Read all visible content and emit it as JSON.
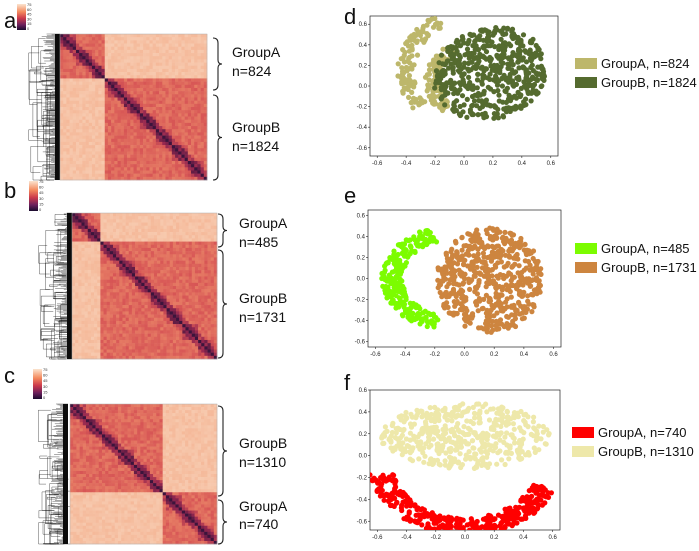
{
  "panels": {
    "a": {
      "label": "a",
      "groups": [
        {
          "name": "GroupA",
          "n": "n=824"
        },
        {
          "name": "GroupB",
          "n": "n=1824"
        }
      ]
    },
    "b": {
      "label": "b",
      "groups": [
        {
          "name": "GroupA",
          "n": "n=485"
        },
        {
          "name": "GroupB",
          "n": "n=1731"
        }
      ]
    },
    "c": {
      "label": "c",
      "groups": [
        {
          "name": "GroupB",
          "n": "n=1310"
        },
        {
          "name": "GroupA",
          "n": "n=740"
        }
      ]
    },
    "d": {
      "label": "d"
    },
    "e": {
      "label": "e"
    },
    "f": {
      "label": "f"
    }
  },
  "colorbar_ticks": [
    "75",
    "60",
    "45",
    "30",
    "15",
    "0"
  ],
  "chart_data": [
    {
      "type": "scatter",
      "panel": "d",
      "xticks": [
        "-0.6",
        "-0.4",
        "-0.2",
        "0.0",
        "0.2",
        "0.4",
        "0.6"
      ],
      "yticks": [
        "0.6",
        "0.4",
        "0.2",
        "0.0",
        "-0.2",
        "-0.4",
        "-0.6"
      ],
      "xlim": [
        -0.65,
        0.65
      ],
      "ylim": [
        -0.68,
        0.68
      ],
      "series": [
        {
          "name": "GroupA, n=824",
          "legend": "GroupA, n=824",
          "color": "#bdb76b"
        },
        {
          "name": "GroupB, n=1824",
          "legend": "GroupB, n=1824",
          "color": "#556b2f"
        }
      ]
    },
    {
      "type": "scatter",
      "panel": "e",
      "xticks": [
        "-0.6",
        "-0.4",
        "-0.2",
        "0.0",
        "0.2",
        "0.4",
        "0.6"
      ],
      "yticks": [
        "0.6",
        "0.4",
        "0.2",
        "0.0",
        "-0.2",
        "-0.4",
        "-0.6"
      ],
      "xlim": [
        -0.65,
        0.65
      ],
      "ylim": [
        -0.65,
        0.65
      ],
      "series": [
        {
          "name": "GroupA, n=485",
          "legend": "GroupA, n=485",
          "color": "#7cfc00"
        },
        {
          "name": "GroupB, n=1731",
          "legend": "GroupB, n=1731",
          "color": "#cd853f"
        }
      ]
    },
    {
      "type": "scatter",
      "panel": "f",
      "xticks": [
        "-0.6",
        "-0.4",
        "-0.2",
        "0.0",
        "0.2",
        "0.4",
        "0.6"
      ],
      "yticks": [
        "0.6",
        "0.4",
        "0.2",
        "0.0",
        "-0.2",
        "-0.4",
        "-0.6"
      ],
      "xlim": [
        -0.65,
        0.65
      ],
      "ylim": [
        -0.68,
        0.6
      ],
      "series": [
        {
          "name": "GroupA, n=740",
          "legend": "GroupA, n=740",
          "color": "#ff0000"
        },
        {
          "name": "GroupB, n=1310",
          "legend": "GroupB, n=1310",
          "color": "#eee8aa"
        }
      ]
    }
  ]
}
